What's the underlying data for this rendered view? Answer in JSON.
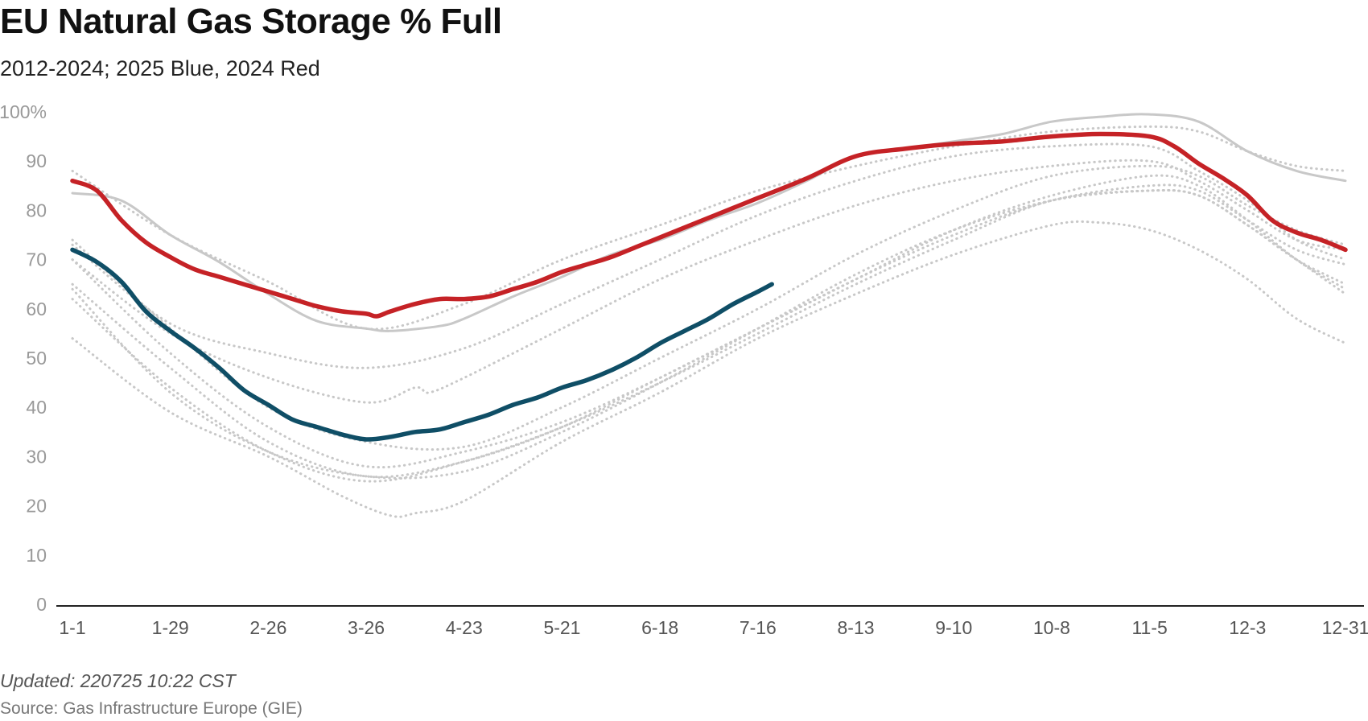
{
  "header": {
    "title": "EU Natural Gas Storage % Full",
    "subtitle": "2012-2024; 2025 Blue, 2024 Red"
  },
  "footer": {
    "updated": "Updated: 220725 10:22 CST",
    "source": "Source: Gas Infrastructure Europe (GIE)"
  },
  "colors": {
    "series_2025": "#0f4e66",
    "series_2024": "#c52226",
    "history": "#c8c8c8",
    "axis": "#222222",
    "tick_y": "#999999",
    "tick_x": "#555555"
  },
  "chart_data": {
    "type": "line",
    "title": "EU Natural Gas Storage % Full",
    "subtitle": "2012-2024; 2025 Blue, 2024 Red",
    "xlabel": "",
    "ylabel": "",
    "ylim": [
      0,
      100
    ],
    "xlim": [
      1,
      365
    ],
    "grid": false,
    "legend": "none",
    "y_ticks": [
      {
        "value": 0,
        "label": "0"
      },
      {
        "value": 10,
        "label": "10"
      },
      {
        "value": 20,
        "label": "20"
      },
      {
        "value": 30,
        "label": "30"
      },
      {
        "value": 40,
        "label": "40"
      },
      {
        "value": 50,
        "label": "50"
      },
      {
        "value": 60,
        "label": "60"
      },
      {
        "value": 70,
        "label": "70"
      },
      {
        "value": 80,
        "label": "80"
      },
      {
        "value": 90,
        "label": "90"
      },
      {
        "value": 100,
        "label": "100%"
      }
    ],
    "x_ticks": [
      {
        "day": 1,
        "label": "1-1"
      },
      {
        "day": 29,
        "label": "1-29"
      },
      {
        "day": 57,
        "label": "2-26"
      },
      {
        "day": 85,
        "label": "3-26"
      },
      {
        "day": 113,
        "label": "4-23"
      },
      {
        "day": 141,
        "label": "5-21"
      },
      {
        "day": 169,
        "label": "6-18"
      },
      {
        "day": 197,
        "label": "7-16"
      },
      {
        "day": 225,
        "label": "8-13"
      },
      {
        "day": 253,
        "label": "9-10"
      },
      {
        "day": 281,
        "label": "10-8"
      },
      {
        "day": 309,
        "label": "11-5"
      },
      {
        "day": 337,
        "label": "12-3"
      },
      {
        "day": 365,
        "label": "12-31"
      }
    ],
    "series": [
      {
        "style": "bold",
        "color": "#0f4e66",
        "x": [
          1,
          8,
          15,
          22,
          29,
          36,
          43,
          50,
          57,
          64,
          71,
          78,
          85,
          92,
          99,
          106,
          113,
          120,
          127,
          134,
          141,
          148,
          155,
          162,
          169,
          176,
          183,
          190,
          197,
          201
        ],
        "y": [
          72,
          69.5,
          65.5,
          59.5,
          55.5,
          52,
          48,
          43.5,
          40.5,
          37.5,
          36,
          34.5,
          33.5,
          34,
          35,
          35.5,
          37,
          38.5,
          40.5,
          42,
          44,
          45.5,
          47.5,
          50,
          53,
          55.5,
          58,
          61,
          63.5,
          65
        ]
      },
      {
        "style": "bold",
        "color": "#c52226",
        "x": [
          1,
          8,
          15,
          22,
          29,
          36,
          43,
          50,
          57,
          64,
          71,
          78,
          85,
          88,
          92,
          99,
          106,
          113,
          120,
          127,
          134,
          141,
          148,
          155,
          162,
          169,
          176,
          183,
          190,
          197,
          211,
          225,
          239,
          253,
          267,
          281,
          295,
          309,
          316,
          323,
          330,
          337,
          344,
          351,
          358,
          365
        ],
        "y": [
          86,
          84,
          78,
          73.5,
          70.5,
          68,
          66.5,
          65,
          63.5,
          62,
          60.5,
          59.5,
          59,
          58.5,
          59.5,
          61,
          62,
          62,
          62.5,
          64,
          65.5,
          67.5,
          69,
          70.5,
          72.5,
          74.5,
          76.5,
          78.5,
          80.5,
          82.5,
          86.5,
          91,
          92.5,
          93.5,
          94,
          95,
          95.5,
          95,
          93,
          89.5,
          86.5,
          83,
          78,
          75.5,
          74,
          72
        ]
      },
      {
        "style": "solid",
        "color": "#c8c8c8",
        "x": [
          1,
          15,
          29,
          43,
          57,
          71,
          85,
          92,
          106,
          113,
          127,
          141,
          155,
          169,
          183,
          197,
          211,
          225,
          239,
          253,
          267,
          281,
          295,
          309,
          323,
          337,
          351,
          365
        ],
        "y": [
          83.5,
          82,
          75,
          69.5,
          63,
          57.5,
          56,
          55.5,
          56.5,
          58,
          62.5,
          66.5,
          71,
          74,
          78,
          81.5,
          86,
          91,
          92.5,
          94,
          95.5,
          98,
          99,
          99.5,
          98,
          92,
          88,
          86
        ]
      },
      {
        "style": "dotted",
        "color": "#c8c8c8",
        "x": [
          1,
          29,
          57,
          85,
          113,
          141,
          169,
          197,
          225,
          253,
          281,
          309,
          323,
          337,
          351,
          365
        ],
        "y": [
          88,
          75,
          65.5,
          56,
          61,
          70,
          77,
          84,
          89,
          93,
          96,
          97,
          96,
          92,
          89,
          88
        ]
      },
      {
        "style": "dotted",
        "color": "#c8c8c8",
        "x": [
          1,
          29,
          57,
          85,
          113,
          141,
          169,
          197,
          225,
          253,
          281,
          309,
          323,
          337,
          351,
          365
        ],
        "y": [
          73,
          57,
          51,
          48,
          52,
          61,
          70,
          79,
          86,
          91,
          93,
          93,
          88,
          82,
          74,
          70
        ]
      },
      {
        "style": "dotted",
        "color": "#c8c8c8",
        "x": [
          1,
          29,
          57,
          85,
          99,
          103,
          113,
          141,
          169,
          197,
          225,
          253,
          281,
          309,
          323,
          337,
          351,
          365
        ],
        "y": [
          70,
          55,
          46,
          41,
          44,
          43,
          46,
          56,
          66,
          74,
          81,
          86,
          89,
          90,
          86,
          80,
          74,
          72
        ]
      },
      {
        "style": "dotted",
        "color": "#c8c8c8",
        "x": [
          1,
          29,
          57,
          85,
          113,
          141,
          169,
          197,
          225,
          253,
          281,
          309,
          323,
          337,
          351,
          365
        ],
        "y": [
          74,
          56,
          40,
          33,
          32,
          40,
          50,
          60,
          71,
          80,
          87,
          89,
          87,
          81,
          76,
          73
        ]
      },
      {
        "style": "dotted",
        "color": "#c8c8c8",
        "x": [
          1,
          29,
          57,
          85,
          113,
          141,
          169,
          197,
          225,
          253,
          281,
          309,
          323,
          337,
          351,
          365
        ],
        "y": [
          70,
          51,
          36,
          28,
          31,
          37,
          46,
          56,
          66,
          76,
          83,
          87,
          85,
          78,
          70,
          64
        ]
      },
      {
        "style": "dotted",
        "color": "#c8c8c8",
        "x": [
          1,
          29,
          57,
          85,
          113,
          141,
          169,
          197,
          225,
          253,
          281,
          309,
          323,
          337,
          351,
          365
        ],
        "y": [
          65,
          48,
          33,
          26,
          29,
          36,
          46,
          56,
          66,
          75,
          82,
          85,
          84,
          78,
          72,
          69
        ]
      },
      {
        "style": "dotted",
        "color": "#c8c8c8",
        "x": [
          1,
          29,
          57,
          85,
          113,
          141,
          169,
          197,
          225,
          253,
          281,
          309,
          323,
          337,
          351,
          365
        ],
        "y": [
          62,
          44,
          31,
          25,
          29,
          36,
          45,
          55,
          65,
          74,
          82,
          84,
          83,
          77,
          70,
          65
        ]
      },
      {
        "style": "dotted",
        "color": "#c8c8c8",
        "x": [
          1,
          29,
          57,
          85,
          113,
          141,
          169,
          197,
          225,
          253,
          281,
          309,
          323,
          337,
          351,
          365
        ],
        "y": [
          64,
          43,
          31,
          26,
          27,
          35,
          45,
          56,
          67,
          76,
          82,
          84,
          83,
          77,
          70,
          63
        ]
      },
      {
        "style": "dotted",
        "color": "#c8c8c8",
        "x": [
          1,
          29,
          57,
          78,
          92,
          99,
          113,
          141,
          169,
          197,
          225,
          253,
          281,
          295,
          309,
          323,
          337,
          351,
          365
        ],
        "y": [
          54,
          39,
          30,
          22,
          18,
          18.5,
          21,
          33,
          43,
          54,
          63,
          71,
          77,
          77.5,
          76,
          72,
          66,
          58,
          53
        ]
      }
    ]
  }
}
